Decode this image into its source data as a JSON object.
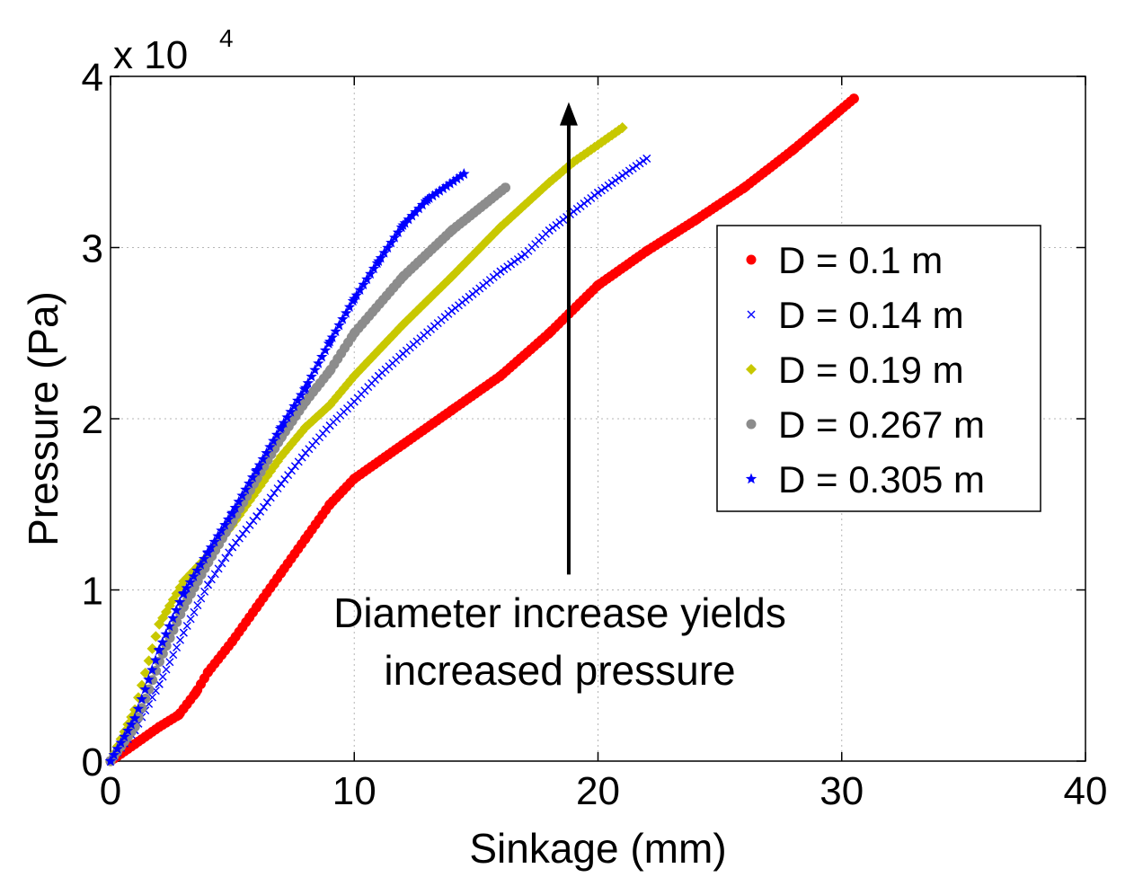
{
  "chart_data": {
    "type": "scatter",
    "title": "",
    "xlabel": "Sinkage (mm)",
    "ylabel": "Pressure (Pa)",
    "xlim": [
      0,
      40
    ],
    "ylim": [
      0,
      40000
    ],
    "x_ticks": [
      0,
      10,
      20,
      30,
      40
    ],
    "x_tick_labels": [
      "0",
      "10",
      "20",
      "30",
      "40"
    ],
    "y_ticks": [
      0,
      10000,
      20000,
      30000,
      40000
    ],
    "y_tick_labels": [
      "0",
      "1",
      "2",
      "3",
      "4"
    ],
    "y_multiplier_base": "x 10",
    "y_multiplier_exponent": "4",
    "grid": true,
    "legend_position": "right",
    "annotation": {
      "lines": [
        "Diameter increase yields",
        "increased pressure"
      ],
      "arrow": {
        "x": 18.8,
        "y_start": 10900,
        "y_end": 38500
      }
    },
    "series": [
      {
        "name": "D = 0.1 m",
        "color": "#ff0000",
        "marker": "dot",
        "points": [
          [
            0,
            0
          ],
          [
            1,
            1000
          ],
          [
            2,
            2000
          ],
          [
            2.8,
            2700
          ],
          [
            3.5,
            4000
          ],
          [
            4,
            5200
          ],
          [
            5,
            7000
          ],
          [
            6,
            9000
          ],
          [
            7,
            11000
          ],
          [
            8,
            13000
          ],
          [
            9,
            15000
          ],
          [
            10,
            16500
          ],
          [
            12,
            18500
          ],
          [
            14,
            20500
          ],
          [
            16,
            22500
          ],
          [
            18,
            25000
          ],
          [
            20,
            27800
          ],
          [
            22,
            29800
          ],
          [
            24,
            31600
          ],
          [
            26,
            33500
          ],
          [
            28,
            35700
          ],
          [
            30.5,
            38700
          ]
        ]
      },
      {
        "name": "D = 0.14 m",
        "color": "#0000ff",
        "marker": "x",
        "points": [
          [
            0,
            0
          ],
          [
            1,
            1800
          ],
          [
            2,
            4500
          ],
          [
            3,
            7500
          ],
          [
            4,
            10300
          ],
          [
            5,
            12500
          ],
          [
            6,
            14300
          ],
          [
            7,
            16200
          ],
          [
            8,
            18000
          ],
          [
            9,
            19600
          ],
          [
            10,
            21000
          ],
          [
            11,
            22500
          ],
          [
            12,
            23800
          ],
          [
            14,
            26300
          ],
          [
            16,
            28600
          ],
          [
            17,
            29600
          ],
          [
            18,
            31000
          ],
          [
            20,
            33200
          ],
          [
            22,
            35200
          ]
        ]
      },
      {
        "name": "D = 0.19 m",
        "color": "#c8c800",
        "marker": "diamond",
        "points": [
          [
            0,
            0
          ],
          [
            1,
            3000
          ],
          [
            2,
            8000
          ],
          [
            3,
            10500
          ],
          [
            4,
            12000
          ],
          [
            5,
            13800
          ],
          [
            6,
            15800
          ],
          [
            7,
            17800
          ],
          [
            8,
            19500
          ],
          [
            9,
            20800
          ],
          [
            10,
            22500
          ],
          [
            12,
            25500
          ],
          [
            14,
            28300
          ],
          [
            16,
            31200
          ],
          [
            18,
            33800
          ],
          [
            19,
            35000
          ],
          [
            21,
            37000
          ]
        ]
      },
      {
        "name": "D = 0.267 m",
        "color": "#8c8c8c",
        "marker": "dot",
        "points": [
          [
            0,
            0
          ],
          [
            1,
            2000
          ],
          [
            2,
            5800
          ],
          [
            3,
            9000
          ],
          [
            4,
            11600
          ],
          [
            5,
            14000
          ],
          [
            6,
            16500
          ],
          [
            7,
            18900
          ],
          [
            8,
            21000
          ],
          [
            9,
            22800
          ],
          [
            10,
            25000
          ],
          [
            12,
            28300
          ],
          [
            14,
            31000
          ],
          [
            16.2,
            33500
          ]
        ]
      },
      {
        "name": "D = 0.305 m",
        "color": "#0000ff",
        "marker": "star",
        "points": [
          [
            0,
            0
          ],
          [
            1,
            2500
          ],
          [
            2,
            6500
          ],
          [
            3,
            9800
          ],
          [
            4,
            12200
          ],
          [
            5,
            14500
          ],
          [
            6,
            17000
          ],
          [
            7,
            19500
          ],
          [
            8,
            21800
          ],
          [
            9,
            24500
          ],
          [
            10,
            27000
          ],
          [
            11,
            29200
          ],
          [
            12,
            31300
          ],
          [
            13,
            32800
          ],
          [
            14.5,
            34300
          ]
        ]
      }
    ]
  }
}
